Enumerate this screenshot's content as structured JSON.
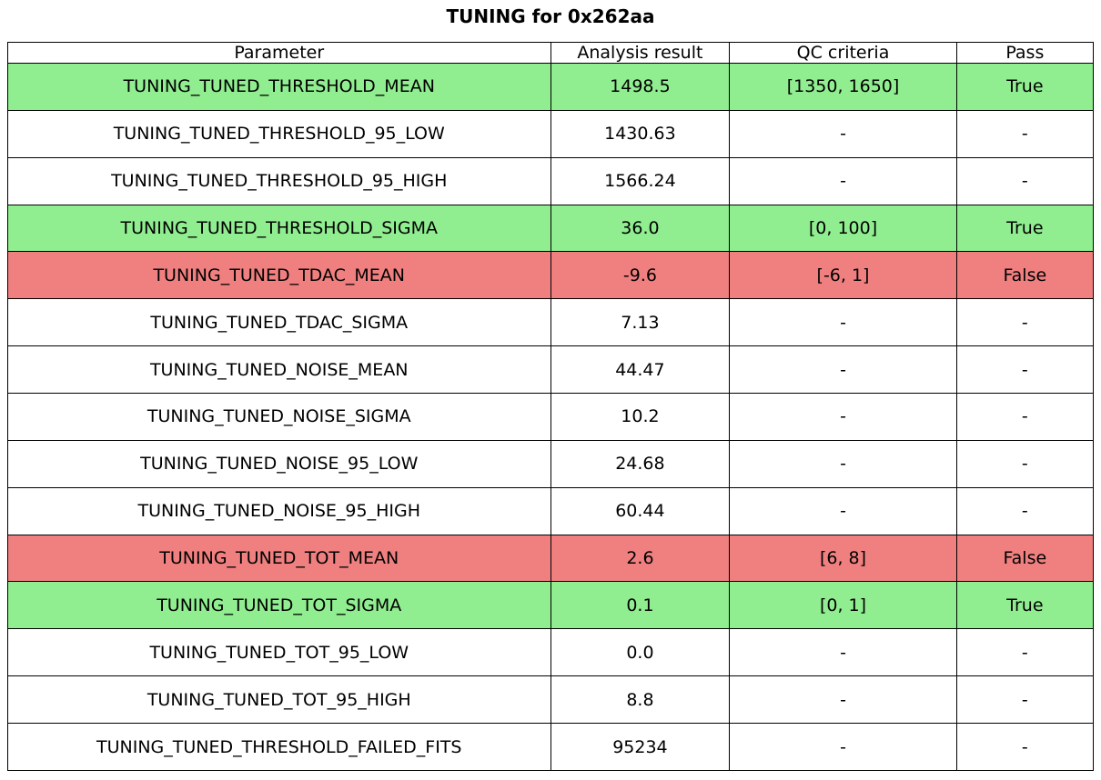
{
  "title": "TUNING for 0x262aa",
  "colors": {
    "pass_bg": "#90EE90",
    "fail_bg": "#F08080",
    "default_bg": "#FFFFFF",
    "border": "#000000",
    "text": "#000000"
  },
  "chart_data": {
    "type": "table",
    "title": "TUNING for 0x262aa",
    "columns": [
      "Parameter",
      "Analysis result",
      "QC criteria",
      "Pass"
    ],
    "rows": [
      {
        "cells": [
          "TUNING_TUNED_THRESHOLD_MEAN",
          "1498.5",
          "[1350, 1650]",
          "True"
        ],
        "status": "pass"
      },
      {
        "cells": [
          "TUNING_TUNED_THRESHOLD_95_LOW",
          "1430.63",
          "-",
          "-"
        ],
        "status": "none"
      },
      {
        "cells": [
          "TUNING_TUNED_THRESHOLD_95_HIGH",
          "1566.24",
          "-",
          "-"
        ],
        "status": "none"
      },
      {
        "cells": [
          "TUNING_TUNED_THRESHOLD_SIGMA",
          "36.0",
          "[0, 100]",
          "True"
        ],
        "status": "pass"
      },
      {
        "cells": [
          "TUNING_TUNED_TDAC_MEAN",
          "-9.6",
          "[-6, 1]",
          "False"
        ],
        "status": "fail"
      },
      {
        "cells": [
          "TUNING_TUNED_TDAC_SIGMA",
          "7.13",
          "-",
          "-"
        ],
        "status": "none"
      },
      {
        "cells": [
          "TUNING_TUNED_NOISE_MEAN",
          "44.47",
          "-",
          "-"
        ],
        "status": "none"
      },
      {
        "cells": [
          "TUNING_TUNED_NOISE_SIGMA",
          "10.2",
          "-",
          "-"
        ],
        "status": "none"
      },
      {
        "cells": [
          "TUNING_TUNED_NOISE_95_LOW",
          "24.68",
          "-",
          "-"
        ],
        "status": "none"
      },
      {
        "cells": [
          "TUNING_TUNED_NOISE_95_HIGH",
          "60.44",
          "-",
          "-"
        ],
        "status": "none"
      },
      {
        "cells": [
          "TUNING_TUNED_TOT_MEAN",
          "2.6",
          "[6, 8]",
          "False"
        ],
        "status": "fail"
      },
      {
        "cells": [
          "TUNING_TUNED_TOT_SIGMA",
          "0.1",
          "[0, 1]",
          "True"
        ],
        "status": "pass"
      },
      {
        "cells": [
          "TUNING_TUNED_TOT_95_LOW",
          "0.0",
          "-",
          "-"
        ],
        "status": "none"
      },
      {
        "cells": [
          "TUNING_TUNED_TOT_95_HIGH",
          "8.8",
          "-",
          "-"
        ],
        "status": "none"
      },
      {
        "cells": [
          "TUNING_TUNED_THRESHOLD_FAILED_FITS",
          "95234",
          "-",
          "-"
        ],
        "status": "none"
      }
    ],
    "layout": {
      "column_width_fractions": [
        0.5,
        0.165,
        0.209,
        0.126
      ],
      "row_highlighting": "green=pass, red=fail, white=no criteria",
      "legend_position": "none",
      "grid": "full cell borders"
    }
  }
}
